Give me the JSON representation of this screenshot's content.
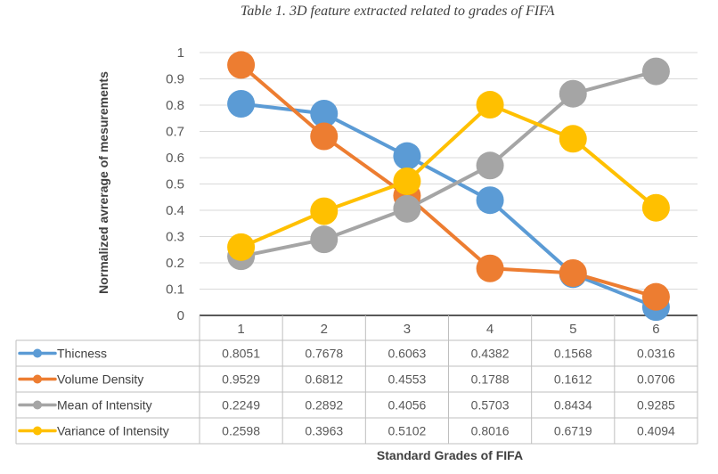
{
  "chart_data": {
    "type": "line",
    "title": "Table 1. 3D feature extracted related to grades of FIFA",
    "xlabel": "Standard Grades of FIFA",
    "ylabel": "Normalized avrerage of mesurements",
    "categories": [
      "1",
      "2",
      "3",
      "4",
      "5",
      "6"
    ],
    "yticks": [
      "0",
      "0.1",
      "0.2",
      "0.3",
      "0.4",
      "0.5",
      "0.6",
      "0.7",
      "0.8",
      "0.9",
      "1"
    ],
    "ylim": [
      0,
      1
    ],
    "grid": true,
    "legend_placement": "data-table-below",
    "series": [
      {
        "name": "Thicness",
        "color": "#5B9BD5",
        "values": [
          0.8051,
          0.7678,
          0.6063,
          0.4382,
          0.1568,
          0.0316
        ],
        "labels": [
          "0.8051",
          "0.7678",
          "0.6063",
          "0.4382",
          "0.1568",
          "0.0316"
        ]
      },
      {
        "name": "Volume Density",
        "color": "#ED7D31",
        "values": [
          0.9529,
          0.6812,
          0.4553,
          0.1788,
          0.1612,
          0.0706
        ],
        "labels": [
          "0.9529",
          "0.6812",
          "0.4553",
          "0.1788",
          "0.1612",
          "0.0706"
        ]
      },
      {
        "name": "Mean of Intensity",
        "color": "#A5A5A5",
        "values": [
          0.2249,
          0.2892,
          0.4056,
          0.5703,
          0.8434,
          0.9285
        ],
        "labels": [
          "0.2249",
          "0.2892",
          "0.4056",
          "0.5703",
          "0.8434",
          "0.9285"
        ]
      },
      {
        "name": "Variance of Intensity",
        "color": "#FFC000",
        "values": [
          0.2598,
          0.3963,
          0.5102,
          0.8016,
          0.6719,
          0.4094
        ],
        "labels": [
          "0.2598",
          "0.3963",
          "0.5102",
          "0.8016",
          "0.6719",
          "0.4094"
        ]
      }
    ]
  }
}
